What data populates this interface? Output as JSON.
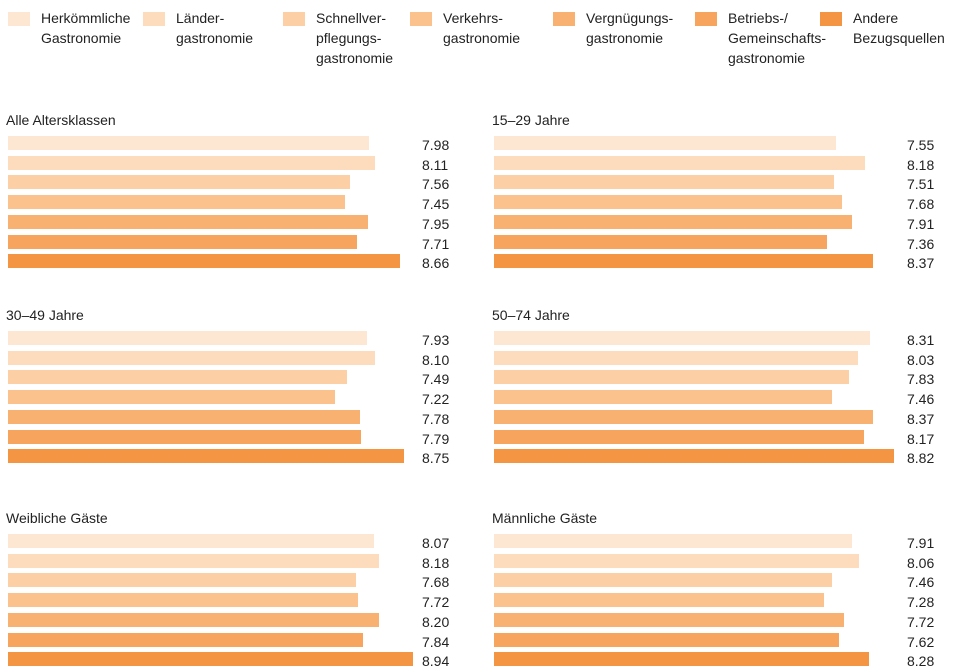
{
  "legend": [
    {
      "name": "Herkömmliche\nGastronomie",
      "color": "#fde7d2"
    },
    {
      "name": "Länder-\ngastronomie",
      "color": "#fddcbd"
    },
    {
      "name": "Schnellver-\npflegungs-\ngastronomie",
      "color": "#fccfa4"
    },
    {
      "name": "Verkehrs-\ngastronomie",
      "color": "#fbc28e"
    },
    {
      "name": "Vergnügungs-\ngastronomie",
      "color": "#f9b172"
    },
    {
      "name": "Betriebs-/\nGemeinschafts-\ngastronomie",
      "color": "#f7a45e"
    },
    {
      "name": "Andere\nBezugsquellen",
      "color": "#f39543"
    }
  ],
  "chart_data": [
    {
      "type": "bar",
      "title": "Alle Altersklassen",
      "values": [
        7.98,
        8.11,
        7.56,
        7.45,
        7.95,
        7.71,
        8.66
      ],
      "value_labels": [
        "7.98",
        "8.11",
        "7.56",
        "7.45",
        "7.95",
        "7.71",
        "8.66"
      ],
      "xlim": [
        0,
        10
      ]
    },
    {
      "type": "bar",
      "title": "15–29 Jahre",
      "values": [
        7.55,
        8.18,
        7.51,
        7.68,
        7.91,
        7.36,
        8.37
      ],
      "value_labels": [
        "7.55",
        "8.18",
        "7.51",
        "7.68",
        "7.91",
        "7.36",
        "8.37"
      ],
      "xlim": [
        0,
        10
      ]
    },
    {
      "type": "bar",
      "title": "30–49 Jahre",
      "values": [
        7.93,
        8.1,
        7.49,
        7.22,
        7.78,
        7.79,
        8.75
      ],
      "value_labels": [
        "7.93",
        "8.10",
        "7.49",
        "7.22",
        "7.78",
        "7.79",
        "8.75"
      ],
      "xlim": [
        0,
        10
      ]
    },
    {
      "type": "bar",
      "title": "50–74 Jahre",
      "values": [
        8.31,
        8.03,
        7.83,
        7.46,
        8.37,
        8.17,
        8.82
      ],
      "value_labels": [
        "8.31",
        "8.03",
        "7.83",
        "7.46",
        "8.37",
        "8.17",
        "8.82"
      ],
      "xlim": [
        0,
        10
      ]
    },
    {
      "type": "bar",
      "title": "Weibliche Gäste",
      "values": [
        8.07,
        8.18,
        7.68,
        7.72,
        8.2,
        7.84,
        8.94
      ],
      "value_labels": [
        "8.07",
        "8.18",
        "7.68",
        "7.72",
        "8.20",
        "7.84",
        "8.94"
      ],
      "xlim": [
        0,
        10
      ]
    },
    {
      "type": "bar",
      "title": "Männliche Gäste",
      "values": [
        7.91,
        8.06,
        7.46,
        7.28,
        7.72,
        7.62,
        8.28
      ],
      "value_labels": [
        "7.91",
        "8.06",
        "7.46",
        "7.28",
        "7.72",
        "7.62",
        "8.28"
      ],
      "xlim": [
        0,
        10
      ]
    }
  ]
}
